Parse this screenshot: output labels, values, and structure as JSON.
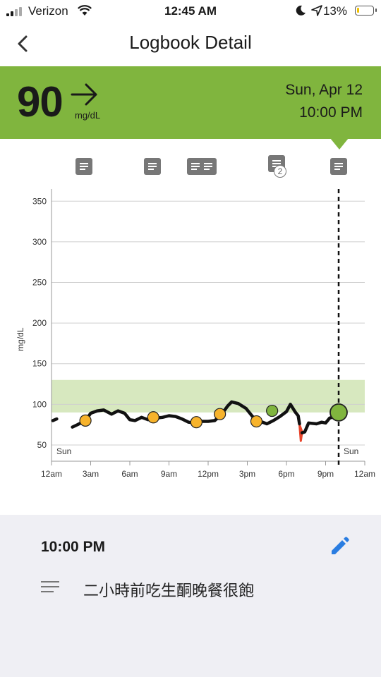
{
  "status_bar": {
    "carrier": "Verizon",
    "time": "12:45 AM",
    "battery_percent": "13%",
    "battery_level": 0.13
  },
  "nav": {
    "title": "Logbook Detail",
    "back_icon": "chevron-left-icon"
  },
  "header": {
    "reading": "90",
    "unit": "mg/dL",
    "trend_icon": "arrow-right-icon",
    "date": "Sun, Apr 12",
    "time": "10:00 PM",
    "color": "#80b53e"
  },
  "chart_data": {
    "type": "line",
    "ylabel": "mg/dL",
    "ylim": [
      30,
      365
    ],
    "xlim": [
      0,
      24
    ],
    "yticks": [
      50,
      100,
      150,
      200,
      250,
      300,
      350
    ],
    "xtick_labels": [
      "12am",
      "3am",
      "6am",
      "9am",
      "12pm",
      "3pm",
      "6pm",
      "9pm",
      "12am"
    ],
    "day_labels": [
      "Sun",
      "Sun"
    ],
    "target_range": [
      90,
      130
    ],
    "grid": true,
    "series": [
      {
        "values": [
          [
            0.1,
            80
          ],
          [
            0.4,
            82
          ]
        ]
      },
      {
        "values": [
          [
            1.6,
            72
          ],
          [
            2.0,
            75
          ],
          [
            2.6,
            80
          ],
          [
            3.0,
            89
          ],
          [
            3.5,
            92
          ],
          [
            4.0,
            93
          ],
          [
            4.6,
            88
          ],
          [
            5.1,
            92
          ],
          [
            5.6,
            89
          ],
          [
            6.0,
            81
          ],
          [
            6.4,
            80
          ],
          [
            6.9,
            84
          ],
          [
            7.4,
            81
          ],
          [
            8.0,
            83
          ],
          [
            8.5,
            84
          ],
          [
            9.0,
            86
          ],
          [
            9.5,
            85
          ],
          [
            10.0,
            82
          ],
          [
            10.5,
            78
          ],
          [
            11.0,
            77
          ],
          [
            11.5,
            79
          ],
          [
            12.0,
            79
          ],
          [
            12.5,
            80
          ],
          [
            13.0,
            87
          ],
          [
            13.5,
            98
          ],
          [
            13.8,
            103
          ],
          [
            14.3,
            101
          ],
          [
            14.9,
            95
          ],
          [
            15.4,
            85
          ],
          [
            16.0,
            79
          ],
          [
            16.5,
            76
          ],
          [
            17.0,
            80
          ],
          [
            17.5,
            85
          ],
          [
            18.0,
            91
          ],
          [
            18.3,
            100
          ],
          [
            18.7,
            90
          ],
          [
            18.9,
            86
          ],
          [
            19.0,
            76
          ]
        ]
      },
      {
        "values": [
          [
            19.2,
            65
          ],
          [
            19.4,
            66
          ],
          [
            19.7,
            77
          ],
          [
            20.3,
            76
          ],
          [
            20.7,
            78
          ],
          [
            21.0,
            77
          ],
          [
            21.3,
            83
          ],
          [
            21.7,
            85
          ],
          [
            22.0,
            90
          ]
        ]
      }
    ],
    "low_segment": [
      [
        19.0,
        75
      ],
      [
        19.1,
        55
      ],
      [
        19.2,
        66
      ]
    ],
    "markers": [
      {
        "x": 2.6,
        "y": 80,
        "color": "#f7b32b"
      },
      {
        "x": 7.8,
        "y": 84,
        "color": "#f7b32b"
      },
      {
        "x": 11.1,
        "y": 78,
        "color": "#f7b32b"
      },
      {
        "x": 12.9,
        "y": 88,
        "color": "#f7b32b"
      },
      {
        "x": 15.7,
        "y": 79,
        "color": "#f7b32b"
      },
      {
        "x": 16.9,
        "y": 92,
        "color": "#80b53e"
      },
      {
        "x": 22.0,
        "y": 90,
        "color": "#80b53e",
        "large": true
      }
    ],
    "current_time": 22.0,
    "note_hours": [
      2.5,
      7.75,
      11.0,
      12.0,
      17.25,
      22.0
    ],
    "note_badge": "2"
  },
  "detail": {
    "time": "10:00 PM",
    "edit_icon": "pencil-icon",
    "note_icon": "note-lines-icon",
    "note_text": "二小時前吃生酮晚餐很飽"
  }
}
